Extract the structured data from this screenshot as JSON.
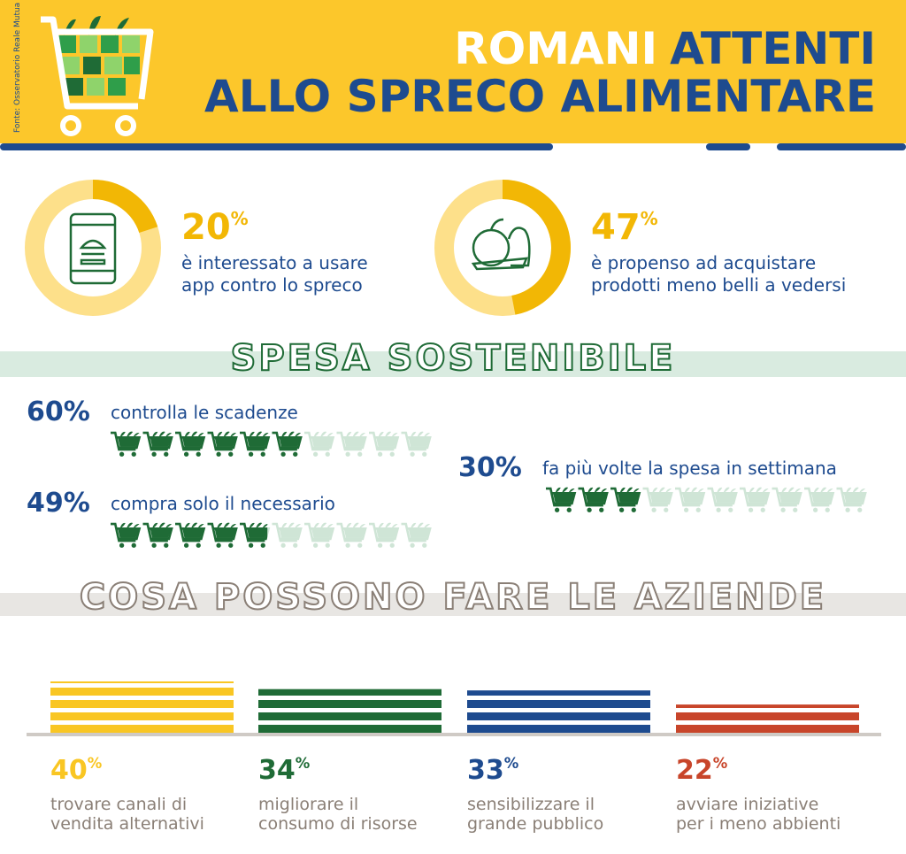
{
  "header": {
    "source": "Fonte: Osservatorio Reale Mutua",
    "title_white": "ROMANI",
    "title_blue": "ATTENTI",
    "title_line2": "ALLO SPRECO ALIMENTARE"
  },
  "highlights": [
    {
      "value": 20,
      "unit": "%",
      "lines": [
        "è interessato a usare",
        "app contro lo spreco"
      ]
    },
    {
      "value": 47,
      "unit": "%",
      "lines": [
        "è propenso ad acquistare",
        "prodotti meno belli a vedersi"
      ]
    }
  ],
  "spesa": {
    "title": "SPESA SOSTENIBILE",
    "icons_total": 10,
    "items": [
      {
        "value": 60,
        "unit": "%",
        "text": "controlla le scadenze"
      },
      {
        "value": 49,
        "unit": "%",
        "text": "compra solo il necessario"
      },
      {
        "value": 30,
        "unit": "%",
        "text": "fa più volte la spesa in settimana"
      }
    ]
  },
  "aziende": {
    "title": "COSA POSSONO FARE LE AZIENDE",
    "items": [
      {
        "value": 40,
        "unit": "%",
        "lines": [
          "trovare canali di",
          "vendita alternativi"
        ],
        "color": "#f9c623"
      },
      {
        "value": 34,
        "unit": "%",
        "lines": [
          "migliorare il",
          "consumo di risorse"
        ],
        "color": "#1f6b36"
      },
      {
        "value": 33,
        "unit": "%",
        "lines": [
          "sensibilizzare il",
          "grande pubblico"
        ],
        "color": "#1e4b8f"
      },
      {
        "value": 22,
        "unit": "%",
        "lines": [
          "avviare iniziative",
          "per i meno abbienti"
        ],
        "color": "#c8452a"
      }
    ]
  }
}
